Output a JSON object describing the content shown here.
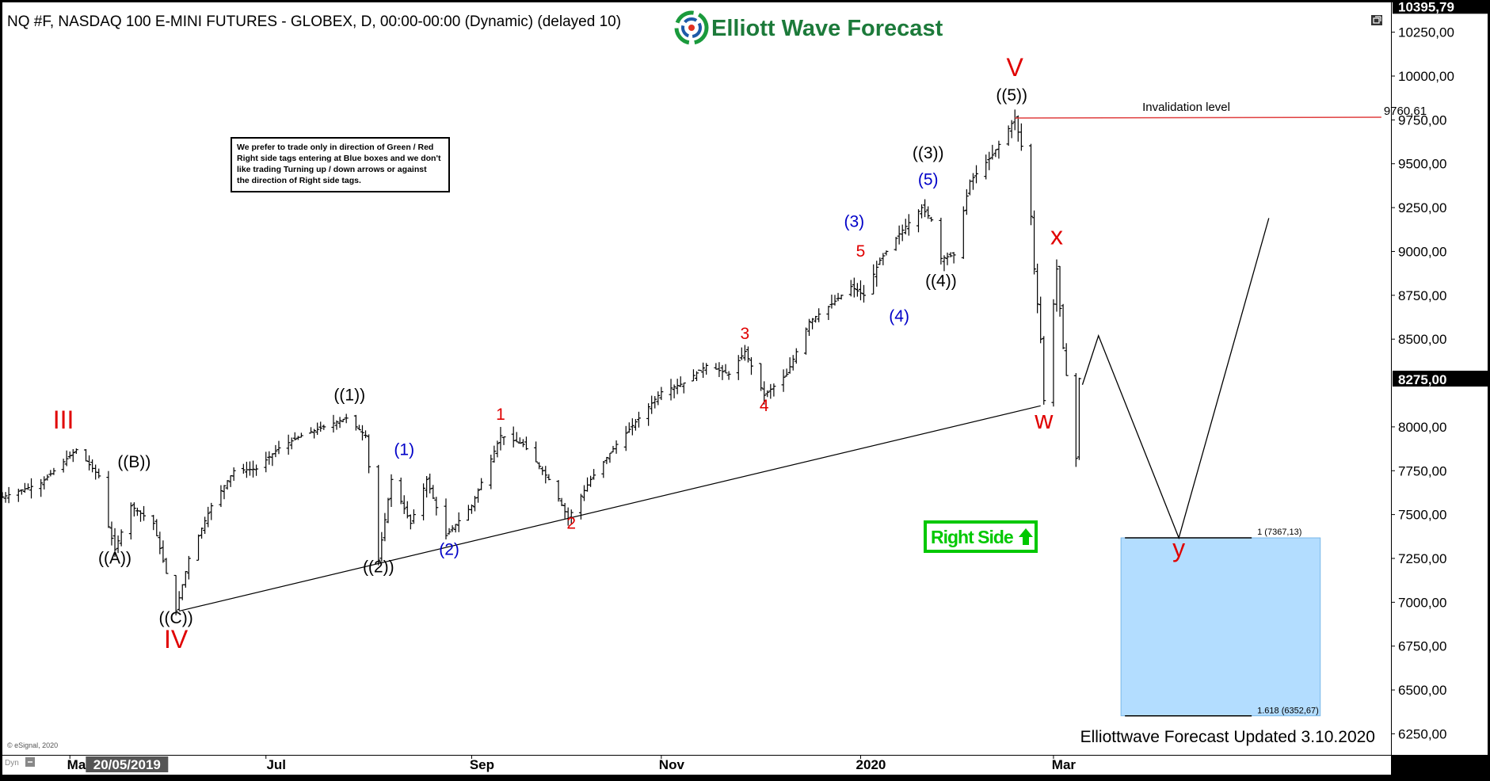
{
  "header": {
    "symbol_title": "NQ #F, NASDAQ 100 E-MINI FUTURES - GLOBEX, D, 00:00-00:00 (Dynamic) (delayed 10)",
    "logo_text": "Elliott Wave Forecast"
  },
  "notice": {
    "lines": [
      "We prefer to trade only in direction of Green / Red",
      "Right side tags entering at Blue boxes and we don't",
      "like trading Turning up / down arrows or against",
      "the direction of Right side tags."
    ]
  },
  "footer": {
    "updated": "Elliottwave Forecast Updated 3.10.2020",
    "copyright": "© eSignal, 2020",
    "dyn": "Dyn"
  },
  "right_side_tag": {
    "label": "Right Side",
    "arrow": "up-arrow-icon",
    "color": "#00c800"
  },
  "colors": {
    "red": "#e00000",
    "blue": "#0000c8",
    "black": "#000000",
    "box": "#b3ddff",
    "tag": "#00c800"
  },
  "chart_data": {
    "type": "candlestick",
    "instrument": "NQ #F, NASDAQ 100 E-MINI FUTURES - GLOBEX",
    "timeframe": "D",
    "ylim": [
      6130,
      10420
    ],
    "y_ticks": [
      "10250,00",
      "10000,00",
      "9750,00",
      "9500,00",
      "9250,00",
      "9000,00",
      "8750,00",
      "8500,00",
      "8000,00",
      "7750,00",
      "7500,00",
      "7250,00",
      "7000,00",
      "6750,00",
      "6500,00",
      "6250,00"
    ],
    "y_tick_values": [
      10250,
      10000,
      9750,
      9500,
      9250,
      9000,
      8750,
      8500,
      8000,
      7750,
      7500,
      7250,
      7000,
      6750,
      6500,
      6250
    ],
    "top_price_label": "10395,79",
    "top_price_value": 10395.79,
    "last_price_label": "8275,00",
    "last_price_value": 8275,
    "x_ticks": [
      {
        "label": "May",
        "date": "2019-05-01"
      },
      {
        "label": "20/05/2019",
        "date": "2019-05-20",
        "highlight": true
      },
      {
        "label": "Jul",
        "date": "2019-07-01"
      },
      {
        "label": "Sep",
        "date": "2019-09-03"
      },
      {
        "label": "Nov",
        "date": "2019-11-01"
      },
      {
        "label": "2020",
        "date": "2020-01-02"
      },
      {
        "label": "Mar",
        "date": "2020-03-02"
      }
    ],
    "x_date_range": [
      "2019-04-10",
      "2020-06-15"
    ],
    "price_path": [
      [
        "2019-04-10",
        7600
      ],
      [
        "2019-04-22",
        7680
      ],
      [
        "2019-05-03",
        7870
      ],
      [
        "2019-05-10",
        7720
      ],
      [
        "2019-05-13",
        7430
      ],
      [
        "2019-05-15",
        7300
      ],
      [
        "2019-05-20",
        7550
      ],
      [
        "2019-05-27",
        7450
      ],
      [
        "2019-06-03",
        6950
      ],
      [
        "2019-06-07",
        7250
      ],
      [
        "2019-06-14",
        7550
      ],
      [
        "2019-06-21",
        7750
      ],
      [
        "2019-06-28",
        7760
      ],
      [
        "2019-07-05",
        7880
      ],
      [
        "2019-07-12",
        7950
      ],
      [
        "2019-07-19",
        8000
      ],
      [
        "2019-07-26",
        8050
      ],
      [
        "2019-08-01",
        7950
      ],
      [
        "2019-08-05",
        7240
      ],
      [
        "2019-08-09",
        7700
      ],
      [
        "2019-08-15",
        7450
      ],
      [
        "2019-08-20",
        7700
      ],
      [
        "2019-08-26",
        7380
      ],
      [
        "2019-09-03",
        7550
      ],
      [
        "2019-09-12",
        7950
      ],
      [
        "2019-09-19",
        7900
      ],
      [
        "2019-09-27",
        7700
      ],
      [
        "2019-10-03",
        7480
      ],
      [
        "2019-10-10",
        7700
      ],
      [
        "2019-10-18",
        7900
      ],
      [
        "2019-10-25",
        8050
      ],
      [
        "2019-11-01",
        8200
      ],
      [
        "2019-11-08",
        8250
      ],
      [
        "2019-11-15",
        8350
      ],
      [
        "2019-11-22",
        8300
      ],
      [
        "2019-11-27",
        8430
      ],
      [
        "2019-12-03",
        8180
      ],
      [
        "2019-12-10",
        8300
      ],
      [
        "2019-12-17",
        8600
      ],
      [
        "2019-12-24",
        8700
      ],
      [
        "2019-12-30",
        8800
      ],
      [
        "2020-01-03",
        8750
      ],
      [
        "2020-01-08",
        8950
      ],
      [
        "2020-01-14",
        9100
      ],
      [
        "2020-01-21",
        9250
      ],
      [
        "2020-01-24",
        9180
      ],
      [
        "2020-01-27",
        8960
      ],
      [
        "2020-01-31",
        8980
      ],
      [
        "2020-02-05",
        9400
      ],
      [
        "2020-02-12",
        9550
      ],
      [
        "2020-02-19",
        9760
      ],
      [
        "2020-02-21",
        9600
      ],
      [
        "2020-02-24",
        9200
      ],
      [
        "2020-02-25",
        8900
      ],
      [
        "2020-02-27",
        8500
      ],
      [
        "2020-02-28",
        8150
      ],
      [
        "2020-03-02",
        8700
      ],
      [
        "2020-03-03",
        8900
      ],
      [
        "2020-03-05",
        8450
      ],
      [
        "2020-03-09",
        7820
      ],
      [
        "2020-03-10",
        8275
      ]
    ],
    "projection": [
      [
        "2020-03-11",
        8240
      ],
      [
        "2020-03-16",
        8520
      ],
      [
        "2020-04-10",
        7367
      ],
      [
        "2020-05-08",
        9190
      ]
    ],
    "trendline": [
      [
        "2019-06-04",
        6950
      ],
      [
        "2020-02-27",
        8120
      ]
    ],
    "invalidation": {
      "label": "Invalidation level",
      "value_label": "9760,61",
      "value": 9760.61,
      "from": "2020-02-19",
      "to": "2020-06-12"
    },
    "blue_box": {
      "from": "2020-03-23",
      "to": "2020-05-24",
      "top": 7367.13,
      "bottom": 6352.67,
      "top_label": "1 (7367,13)",
      "bottom_label": "1.618 (6352,67)"
    },
    "wave_labels": [
      {
        "text": "III",
        "date": "2019-04-29",
        "price": 7990,
        "color": "red",
        "size": "big"
      },
      {
        "text": "((B))",
        "date": "2019-05-21",
        "price": 7770,
        "color": "black",
        "size": "mid"
      },
      {
        "text": "((A))",
        "date": "2019-05-15",
        "price": 7220,
        "color": "black",
        "size": "mid"
      },
      {
        "text": "((C))",
        "date": "2019-06-03",
        "price": 6880,
        "color": "black",
        "size": "mid"
      },
      {
        "text": "IV",
        "date": "2019-06-03",
        "price": 6740,
        "color": "red",
        "size": "big"
      },
      {
        "text": "((1))",
        "date": "2019-07-27",
        "price": 8150,
        "color": "black",
        "size": "mid"
      },
      {
        "text": "((2))",
        "date": "2019-08-05",
        "price": 7170,
        "color": "black",
        "size": "mid"
      },
      {
        "text": "(1)",
        "date": "2019-08-13",
        "price": 7840,
        "color": "blue",
        "size": "mid"
      },
      {
        "text": "(2)",
        "date": "2019-08-27",
        "price": 7270,
        "color": "blue",
        "size": "mid"
      },
      {
        "text": "1",
        "date": "2019-09-12",
        "price": 8040,
        "color": "red",
        "size": "mid"
      },
      {
        "text": "2",
        "date": "2019-10-04",
        "price": 7420,
        "color": "red",
        "size": "mid"
      },
      {
        "text": "3",
        "date": "2019-11-27",
        "price": 8500,
        "color": "red",
        "size": "mid"
      },
      {
        "text": "4",
        "date": "2019-12-03",
        "price": 8090,
        "color": "red",
        "size": "mid"
      },
      {
        "text": "(3)",
        "date": "2019-12-31",
        "price": 9140,
        "color": "blue",
        "size": "mid"
      },
      {
        "text": "5",
        "date": "2020-01-02",
        "price": 8970,
        "color": "red",
        "size": "mid"
      },
      {
        "text": "(4)",
        "date": "2020-01-14",
        "price": 8600,
        "color": "blue",
        "size": "mid"
      },
      {
        "text": "((3))",
        "date": "2020-01-23",
        "price": 9530,
        "color": "black",
        "size": "mid"
      },
      {
        "text": "(5)",
        "date": "2020-01-23",
        "price": 9380,
        "color": "blue",
        "size": "mid"
      },
      {
        "text": "((4))",
        "date": "2020-01-27",
        "price": 8800,
        "color": "black",
        "size": "mid"
      },
      {
        "text": "((5))",
        "date": "2020-02-18",
        "price": 9860,
        "color": "black",
        "size": "mid"
      },
      {
        "text": "V",
        "date": "2020-02-19",
        "price": 10000,
        "color": "red",
        "size": "big"
      },
      {
        "text": "x",
        "date": "2020-03-03",
        "price": 9040,
        "color": "red",
        "size": "big"
      },
      {
        "text": "w",
        "date": "2020-02-28",
        "price": 7990,
        "color": "red",
        "size": "big"
      },
      {
        "text": "y",
        "date": "2020-04-10",
        "price": 7260,
        "color": "red",
        "size": "big"
      }
    ]
  }
}
